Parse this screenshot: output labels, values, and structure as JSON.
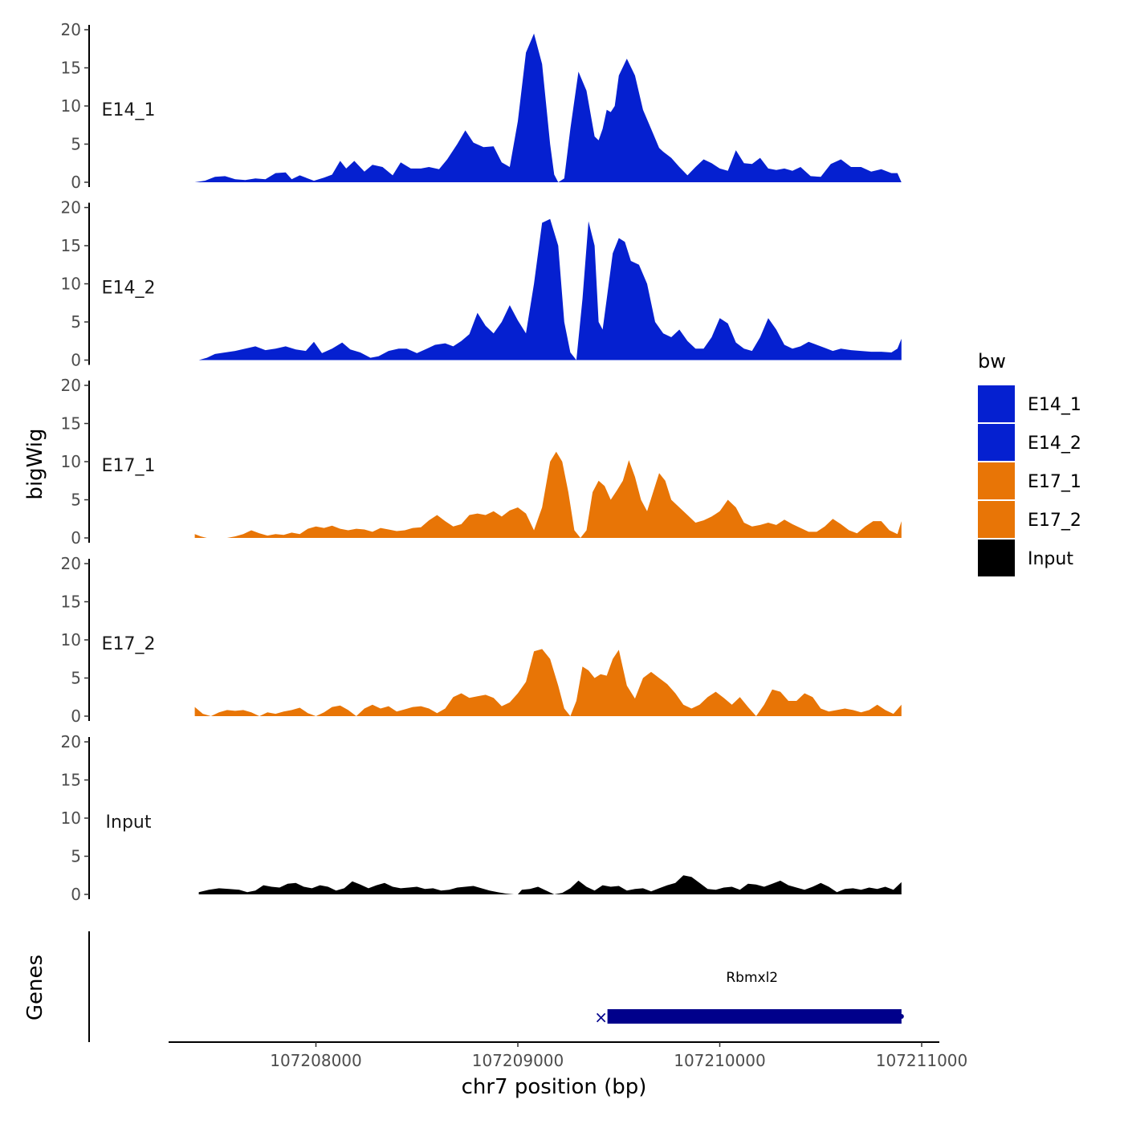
{
  "chart_data": {
    "type": "area",
    "ylabel": "bigWig",
    "xlabel": "chr7 position (bp)",
    "y_range": [
      0,
      20
    ],
    "y_ticks": [
      "0",
      "5",
      "10",
      "15",
      "20"
    ],
    "x_range": [
      107207200,
      107211000
    ],
    "x_ticks": [
      {
        "value": 107208000,
        "label": "107208000"
      },
      {
        "value": 107209000,
        "label": "107209000"
      },
      {
        "value": 107210000,
        "label": "107210000"
      },
      {
        "value": 107211000,
        "label": "107211000"
      }
    ],
    "legend": {
      "title": "bw",
      "items": [
        {
          "label": "E14_1",
          "color": "#0520D0"
        },
        {
          "label": "E14_2",
          "color": "#0520D0"
        },
        {
          "label": "E17_1",
          "color": "#E87506"
        },
        {
          "label": "E17_2",
          "color": "#E87506"
        },
        {
          "label": "Input",
          "color": "#000000"
        }
      ]
    },
    "tracks": [
      {
        "name": "E14_1",
        "color": "#0520D0",
        "x": [
          107207400,
          107207450,
          107207500,
          107207550,
          107207600,
          107207650,
          107207700,
          107207750,
          107207800,
          107207850,
          107207880,
          107207920,
          107207950,
          107207990,
          107208040,
          107208080,
          107208120,
          107208150,
          107208190,
          107208240,
          107208280,
          107208330,
          107208380,
          107208420,
          107208470,
          107208520,
          107208560,
          107208610,
          107208650,
          107208700,
          107208740,
          107208780,
          107208830,
          107208880,
          107208920,
          107208960,
          107209000,
          107209040,
          107209080,
          107209120,
          107209160,
          107209180,
          107209200,
          107209230,
          107209260,
          107209300,
          107209340,
          107209380,
          107209400,
          107209420,
          107209440,
          107209460,
          107209480,
          107209500,
          107209540,
          107209580,
          107209620,
          107209660,
          107209700,
          107209720,
          107209760,
          107209800,
          107209840,
          107209880,
          107209920,
          107209960,
          107210000,
          107210040,
          107210080,
          107210120,
          107210160,
          107210200,
          107210240,
          107210280,
          107210320,
          107210360,
          107210400,
          107210450,
          107210500,
          107210550,
          107210600,
          107210650,
          107210700,
          107210750,
          107210800,
          107210850,
          107210880,
          107210900
        ],
        "y": [
          0,
          0.2,
          0.7,
          0.8,
          0.4,
          0.3,
          0.5,
          0.4,
          1.2,
          1.3,
          0.4,
          0.9,
          0.6,
          0.2,
          0.6,
          1.0,
          2.8,
          1.8,
          2.8,
          1.4,
          2.3,
          2.0,
          0.9,
          2.6,
          1.8,
          1.8,
          2.0,
          1.7,
          3.0,
          5.0,
          6.8,
          5.2,
          4.6,
          4.7,
          2.6,
          2.0,
          8.0,
          17.0,
          19.5,
          15.5,
          5.0,
          1.0,
          0.0,
          0.5,
          7.0,
          14.5,
          12.0,
          6.0,
          5.5,
          7.0,
          9.5,
          9.2,
          10.0,
          14.0,
          16.2,
          14.0,
          9.5,
          7.0,
          4.5,
          4.0,
          3.2,
          2.0,
          0.9,
          2.0,
          3.0,
          2.5,
          1.8,
          1.5,
          4.2,
          2.5,
          2.4,
          3.2,
          1.8,
          1.6,
          1.8,
          1.5,
          2.0,
          0.8,
          0.7,
          2.4,
          3.0,
          2.0,
          2.0,
          1.4,
          1.7,
          1.2,
          1.2,
          0
        ]
      },
      {
        "name": "E14_2",
        "color": "#0520D0",
        "x": [
          107207420,
          107207460,
          107207500,
          107207550,
          107207600,
          107207650,
          107207700,
          107207750,
          107207800,
          107207850,
          107207900,
          107207950,
          107207990,
          107208030,
          107208080,
          107208130,
          107208170,
          107208220,
          107208270,
          107208310,
          107208360,
          107208410,
          107208450,
          107208500,
          107208550,
          107208590,
          107208640,
          107208680,
          107208720,
          107208760,
          107208800,
          107208840,
          107208880,
          107208920,
          107208960,
          107209000,
          107209040,
          107209080,
          107209120,
          107209160,
          107209200,
          107209230,
          107209260,
          107209290,
          107209320,
          107209350,
          107209380,
          107209400,
          107209420,
          107209440,
          107209470,
          107209500,
          107209530,
          107209560,
          107209600,
          107209640,
          107209680,
          107209720,
          107209760,
          107209800,
          107209840,
          107209880,
          107209920,
          107209960,
          107210000,
          107210040,
          107210080,
          107210120,
          107210160,
          107210200,
          107210240,
          107210280,
          107210320,
          107210360,
          107210400,
          107210440,
          107210480,
          107210520,
          107210560,
          107210600,
          107210650,
          107210700,
          107210750,
          107210800,
          107210850,
          107210880,
          107210900
        ],
        "y": [
          0,
          0.3,
          0.8,
          1.0,
          1.2,
          1.5,
          1.8,
          1.3,
          1.5,
          1.8,
          1.4,
          1.2,
          2.4,
          0.9,
          1.5,
          2.3,
          1.4,
          1.0,
          0.3,
          0.5,
          1.2,
          1.5,
          1.5,
          0.9,
          1.5,
          2.0,
          2.2,
          1.8,
          2.5,
          3.4,
          6.2,
          4.5,
          3.5,
          5.0,
          7.2,
          5.2,
          3.5,
          10.0,
          18.0,
          18.5,
          15.0,
          5.0,
          1.0,
          0.0,
          8.0,
          18.2,
          15.0,
          5.0,
          4.0,
          8.0,
          14.0,
          16.0,
          15.5,
          13.0,
          12.5,
          10.0,
          5.0,
          3.5,
          3.0,
          4.0,
          2.5,
          1.5,
          1.5,
          3.0,
          5.5,
          4.8,
          2.3,
          1.5,
          1.2,
          3.0,
          5.5,
          4.0,
          2.0,
          1.5,
          1.8,
          2.4,
          2.0,
          1.6,
          1.2,
          1.5,
          1.3,
          1.2,
          1.1,
          1.1,
          1.0,
          1.5,
          2.8
        ]
      },
      {
        "name": "E17_1",
        "color": "#E87506",
        "x": [
          107207400,
          107207430,
          107207460,
          107207520,
          107207560,
          107207600,
          107207640,
          107207680,
          107207720,
          107207760,
          107207800,
          107207840,
          107207880,
          107207920,
          107207960,
          107208000,
          107208040,
          107208080,
          107208120,
          107208160,
          107208200,
          107208240,
          107208280,
          107208320,
          107208360,
          107208400,
          107208440,
          107208480,
          107208520,
          107208560,
          107208600,
          107208640,
          107208680,
          107208720,
          107208760,
          107208800,
          107208840,
          107208880,
          107208920,
          107208960,
          107209000,
          107209040,
          107209080,
          107209120,
          107209160,
          107209190,
          107209220,
          107209250,
          107209280,
          107209310,
          107209340,
          107209370,
          107209400,
          107209430,
          107209460,
          107209490,
          107209520,
          107209550,
          107209580,
          107209610,
          107209640,
          107209670,
          107209700,
          107209730,
          107209760,
          107209800,
          107209840,
          107209880,
          107209920,
          107209960,
          107210000,
          107210040,
          107210080,
          107210120,
          107210160,
          107210200,
          107210240,
          107210280,
          107210320,
          107210360,
          107210400,
          107210440,
          107210480,
          107210520,
          107210560,
          107210600,
          107210640,
          107210680,
          107210720,
          107210760,
          107210800,
          107210840,
          107210880,
          107210900
        ],
        "y": [
          0.5,
          0.2,
          0,
          0,
          0,
          0.2,
          0.5,
          1.0,
          0.6,
          0.3,
          0.5,
          0.4,
          0.7,
          0.5,
          1.2,
          1.5,
          1.3,
          1.6,
          1.2,
          1.0,
          1.2,
          1.1,
          0.8,
          1.3,
          1.1,
          0.9,
          1.0,
          1.3,
          1.4,
          2.3,
          3.0,
          2.2,
          1.5,
          1.8,
          3.0,
          3.2,
          3.0,
          3.5,
          2.8,
          3.6,
          4.0,
          3.2,
          1.0,
          4.0,
          10.0,
          11.3,
          10.0,
          6.0,
          1.0,
          0.0,
          1.0,
          6.0,
          7.5,
          6.8,
          5.0,
          6.2,
          7.5,
          10.2,
          8.0,
          5.0,
          3.5,
          6.0,
          8.5,
          7.5,
          5.0,
          4.0,
          3.0,
          2.0,
          2.3,
          2.8,
          3.5,
          5.0,
          4.0,
          2.0,
          1.5,
          1.7,
          2.0,
          1.7,
          2.4,
          1.8,
          1.3,
          0.8,
          0.8,
          1.5,
          2.5,
          1.8,
          1.0,
          0.6,
          1.5,
          2.2,
          2.2,
          1.0,
          0.5,
          2.2
        ]
      },
      {
        "name": "E17_2",
        "color": "#E87506",
        "x": [
          107207400,
          107207440,
          107207480,
          107207520,
          107207560,
          107207600,
          107207640,
          107207680,
          107207720,
          107207760,
          107207800,
          107207840,
          107207880,
          107207920,
          107207960,
          107208000,
          107208040,
          107208080,
          107208120,
          107208160,
          107208200,
          107208240,
          107208280,
          107208320,
          107208360,
          107208400,
          107208440,
          107208480,
          107208520,
          107208560,
          107208600,
          107208640,
          107208680,
          107208720,
          107208760,
          107208800,
          107208840,
          107208880,
          107208920,
          107208960,
          107209000,
          107209040,
          107209080,
          107209120,
          107209160,
          107209200,
          107209230,
          107209260,
          107209290,
          107209320,
          107209350,
          107209380,
          107209410,
          107209440,
          107209470,
          107209500,
          107209540,
          107209580,
          107209620,
          107209660,
          107209700,
          107209740,
          107209780,
          107209820,
          107209860,
          107209900,
          107209940,
          107209980,
          107210020,
          107210060,
          107210100,
          107210140,
          107210180,
          107210220,
          107210260,
          107210300,
          107210340,
          107210380,
          107210420,
          107210460,
          107210500,
          107210540,
          107210580,
          107210620,
          107210660,
          107210700,
          107210740,
          107210780,
          107210820,
          107210860,
          107210900
        ],
        "y": [
          1.2,
          0.3,
          0,
          0.5,
          0.8,
          0.7,
          0.8,
          0.5,
          0,
          0.5,
          0.3,
          0.6,
          0.8,
          1.1,
          0.4,
          0,
          0.5,
          1.2,
          1.4,
          0.8,
          0,
          1.0,
          1.5,
          1.0,
          1.3,
          0.6,
          0.9,
          1.2,
          1.3,
          1.0,
          0.4,
          1.0,
          2.5,
          3.0,
          2.4,
          2.6,
          2.8,
          2.4,
          1.3,
          1.8,
          3.0,
          4.5,
          8.5,
          8.8,
          7.5,
          4.0,
          1.0,
          0.0,
          2.0,
          6.5,
          6.0,
          5.0,
          5.5,
          5.3,
          7.5,
          8.7,
          4.0,
          2.3,
          5.0,
          5.8,
          5.0,
          4.2,
          3.0,
          1.5,
          1.0,
          1.5,
          2.5,
          3.2,
          2.4,
          1.5,
          2.5,
          1.2,
          0.0,
          1.5,
          3.5,
          3.2,
          2.0,
          2.0,
          3.0,
          2.5,
          1.0,
          0.6,
          0.8,
          1.0,
          0.8,
          0.5,
          0.8,
          1.5,
          0.8,
          0.3,
          1.5
        ]
      },
      {
        "name": "Input",
        "color": "#000000",
        "x": [
          107207420,
          107207470,
          107207520,
          107207570,
          107207620,
          107207660,
          107207700,
          107207740,
          107207780,
          107207820,
          107207860,
          107207900,
          107207940,
          107207980,
          107208020,
          107208060,
          107208100,
          107208140,
          107208180,
          107208220,
          107208260,
          107208300,
          107208340,
          107208380,
          107208420,
          107208460,
          107208500,
          107208540,
          107208580,
          107208620,
          107208660,
          107208700,
          107208740,
          107208780,
          107208820,
          107208860,
          107208900,
          107208940,
          107208980,
          107209000,
          107209020,
          107209060,
          107209100,
          107209140,
          107209180,
          107209220,
          107209260,
          107209300,
          107209340,
          107209380,
          107209420,
          107209460,
          107209500,
          107209540,
          107209580,
          107209620,
          107209660,
          107209700,
          107209740,
          107209780,
          107209820,
          107209860,
          107209900,
          107209940,
          107209980,
          107210020,
          107210060,
          107210100,
          107210140,
          107210180,
          107210220,
          107210260,
          107210300,
          107210340,
          107210380,
          107210420,
          107210460,
          107210500,
          107210540,
          107210580,
          107210620,
          107210660,
          107210700,
          107210740,
          107210780,
          107210820,
          107210860,
          107210900
        ],
        "y": [
          0.3,
          0.6,
          0.8,
          0.7,
          0.6,
          0.3,
          0.5,
          1.2,
          1.0,
          0.9,
          1.4,
          1.5,
          1.0,
          0.8,
          1.2,
          1.0,
          0.5,
          0.8,
          1.7,
          1.3,
          0.8,
          1.2,
          1.5,
          1.0,
          0.8,
          0.9,
          1.0,
          0.7,
          0.8,
          0.5,
          0.6,
          0.9,
          1.0,
          1.1,
          0.8,
          0.5,
          0.3,
          0.1,
          0.0,
          0.0,
          0.6,
          0.7,
          1.0,
          0.5,
          0.0,
          0.2,
          0.8,
          1.8,
          1.0,
          0.5,
          1.2,
          1.0,
          1.1,
          0.5,
          0.7,
          0.8,
          0.4,
          0.8,
          1.2,
          1.5,
          2.5,
          2.3,
          1.5,
          0.7,
          0.6,
          0.9,
          1.0,
          0.6,
          1.4,
          1.3,
          1.0,
          1.4,
          1.8,
          1.2,
          0.9,
          0.6,
          1.0,
          1.5,
          1.0,
          0.3,
          0.7,
          0.8,
          0.6,
          0.9,
          0.7,
          1.0,
          0.6,
          1.6
        ]
      }
    ],
    "genes_track": {
      "label": "Genes",
      "genes": [
        {
          "name": "Rbmxl2",
          "start": 107209420,
          "end": 107210900,
          "color": "#00008B"
        }
      ]
    }
  }
}
